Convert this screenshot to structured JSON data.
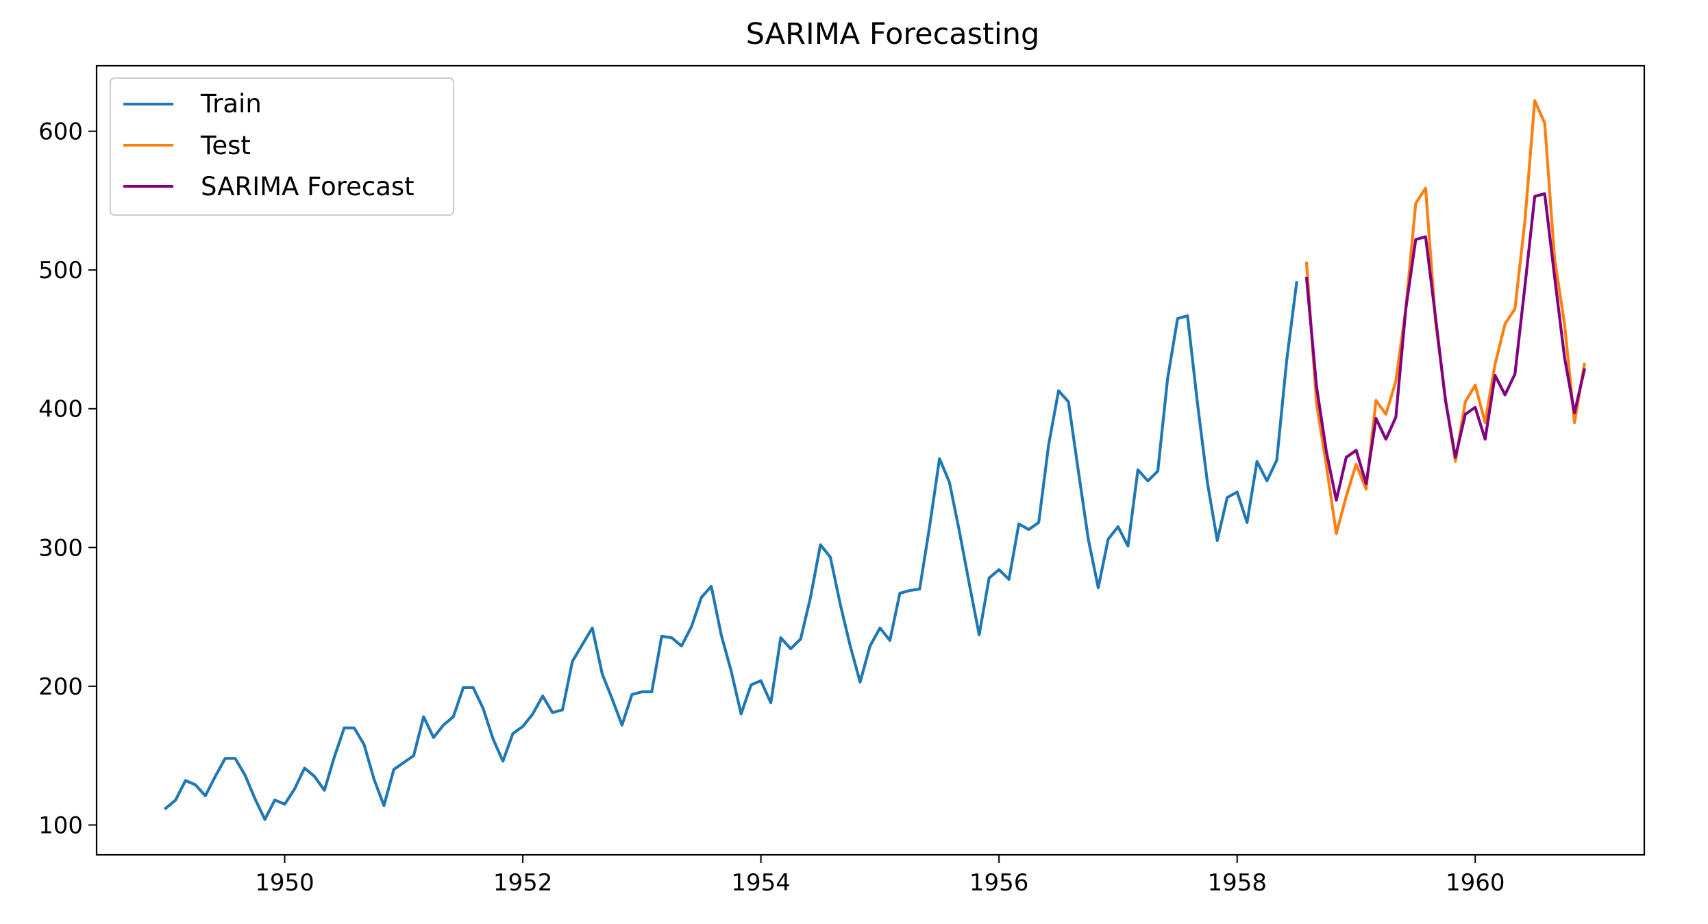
{
  "chart_data": {
    "type": "line",
    "title": "SARIMA Forecasting",
    "xlabel": "",
    "ylabel": "",
    "xlim": [
      1948.42,
      1961.42
    ],
    "ylim": [
      78.5,
      647.2
    ],
    "x_ticks": [
      1950,
      1952,
      1954,
      1956,
      1958,
      1960
    ],
    "x_tick_labels": [
      "1950",
      "1952",
      "1954",
      "1956",
      "1958",
      "1960"
    ],
    "y_ticks": [
      100,
      200,
      300,
      400,
      500,
      600
    ],
    "y_tick_labels": [
      "100",
      "200",
      "300",
      "400",
      "500",
      "600"
    ],
    "grid": false,
    "legend_position": "top-left",
    "x_start": 1949.0,
    "x_step_months": 1,
    "series": [
      {
        "name": "Train",
        "color": "#1f77b4",
        "start_index": 0,
        "values": [
          112,
          118,
          132,
          129,
          121,
          135,
          148,
          148,
          136,
          119,
          104,
          118,
          115,
          126,
          141,
          135,
          125,
          149,
          170,
          170,
          158,
          133,
          114,
          140,
          145,
          150,
          178,
          163,
          172,
          178,
          199,
          199,
          184,
          162,
          146,
          166,
          171,
          180,
          193,
          181,
          183,
          218,
          230,
          242,
          209,
          191,
          172,
          194,
          196,
          196,
          236,
          235,
          229,
          243,
          264,
          272,
          237,
          211,
          180,
          201,
          204,
          188,
          235,
          227,
          234,
          264,
          302,
          293,
          259,
          229,
          203,
          229,
          242,
          233,
          267,
          269,
          270,
          315,
          364,
          347,
          312,
          274,
          237,
          278,
          284,
          277,
          317,
          313,
          318,
          374,
          413,
          405,
          355,
          306,
          271,
          306,
          315,
          301,
          356,
          348,
          355,
          422,
          465,
          467,
          404,
          347,
          305,
          336,
          340,
          318,
          362,
          348,
          363,
          435,
          491
        ]
      },
      {
        "name": "Test",
        "color": "#ff7f0e",
        "start_index": 115,
        "values": [
          505,
          404,
          359,
          310,
          337,
          360,
          342,
          406,
          396,
          420,
          472,
          548,
          559,
          463,
          407,
          362,
          405,
          417,
          390,
          432,
          461,
          472,
          535,
          622,
          606,
          508,
          461,
          390,
          432
        ]
      },
      {
        "name": "SARIMA Forecast",
        "color": "#800080",
        "start_index": 115,
        "values": [
          494,
          416,
          369,
          334,
          365,
          370,
          346,
          393,
          378,
          394,
          472,
          522,
          524,
          466,
          406,
          365,
          396,
          401,
          378,
          424,
          410,
          425,
          488,
          553,
          555,
          495,
          437,
          397,
          428
        ]
      }
    ]
  }
}
